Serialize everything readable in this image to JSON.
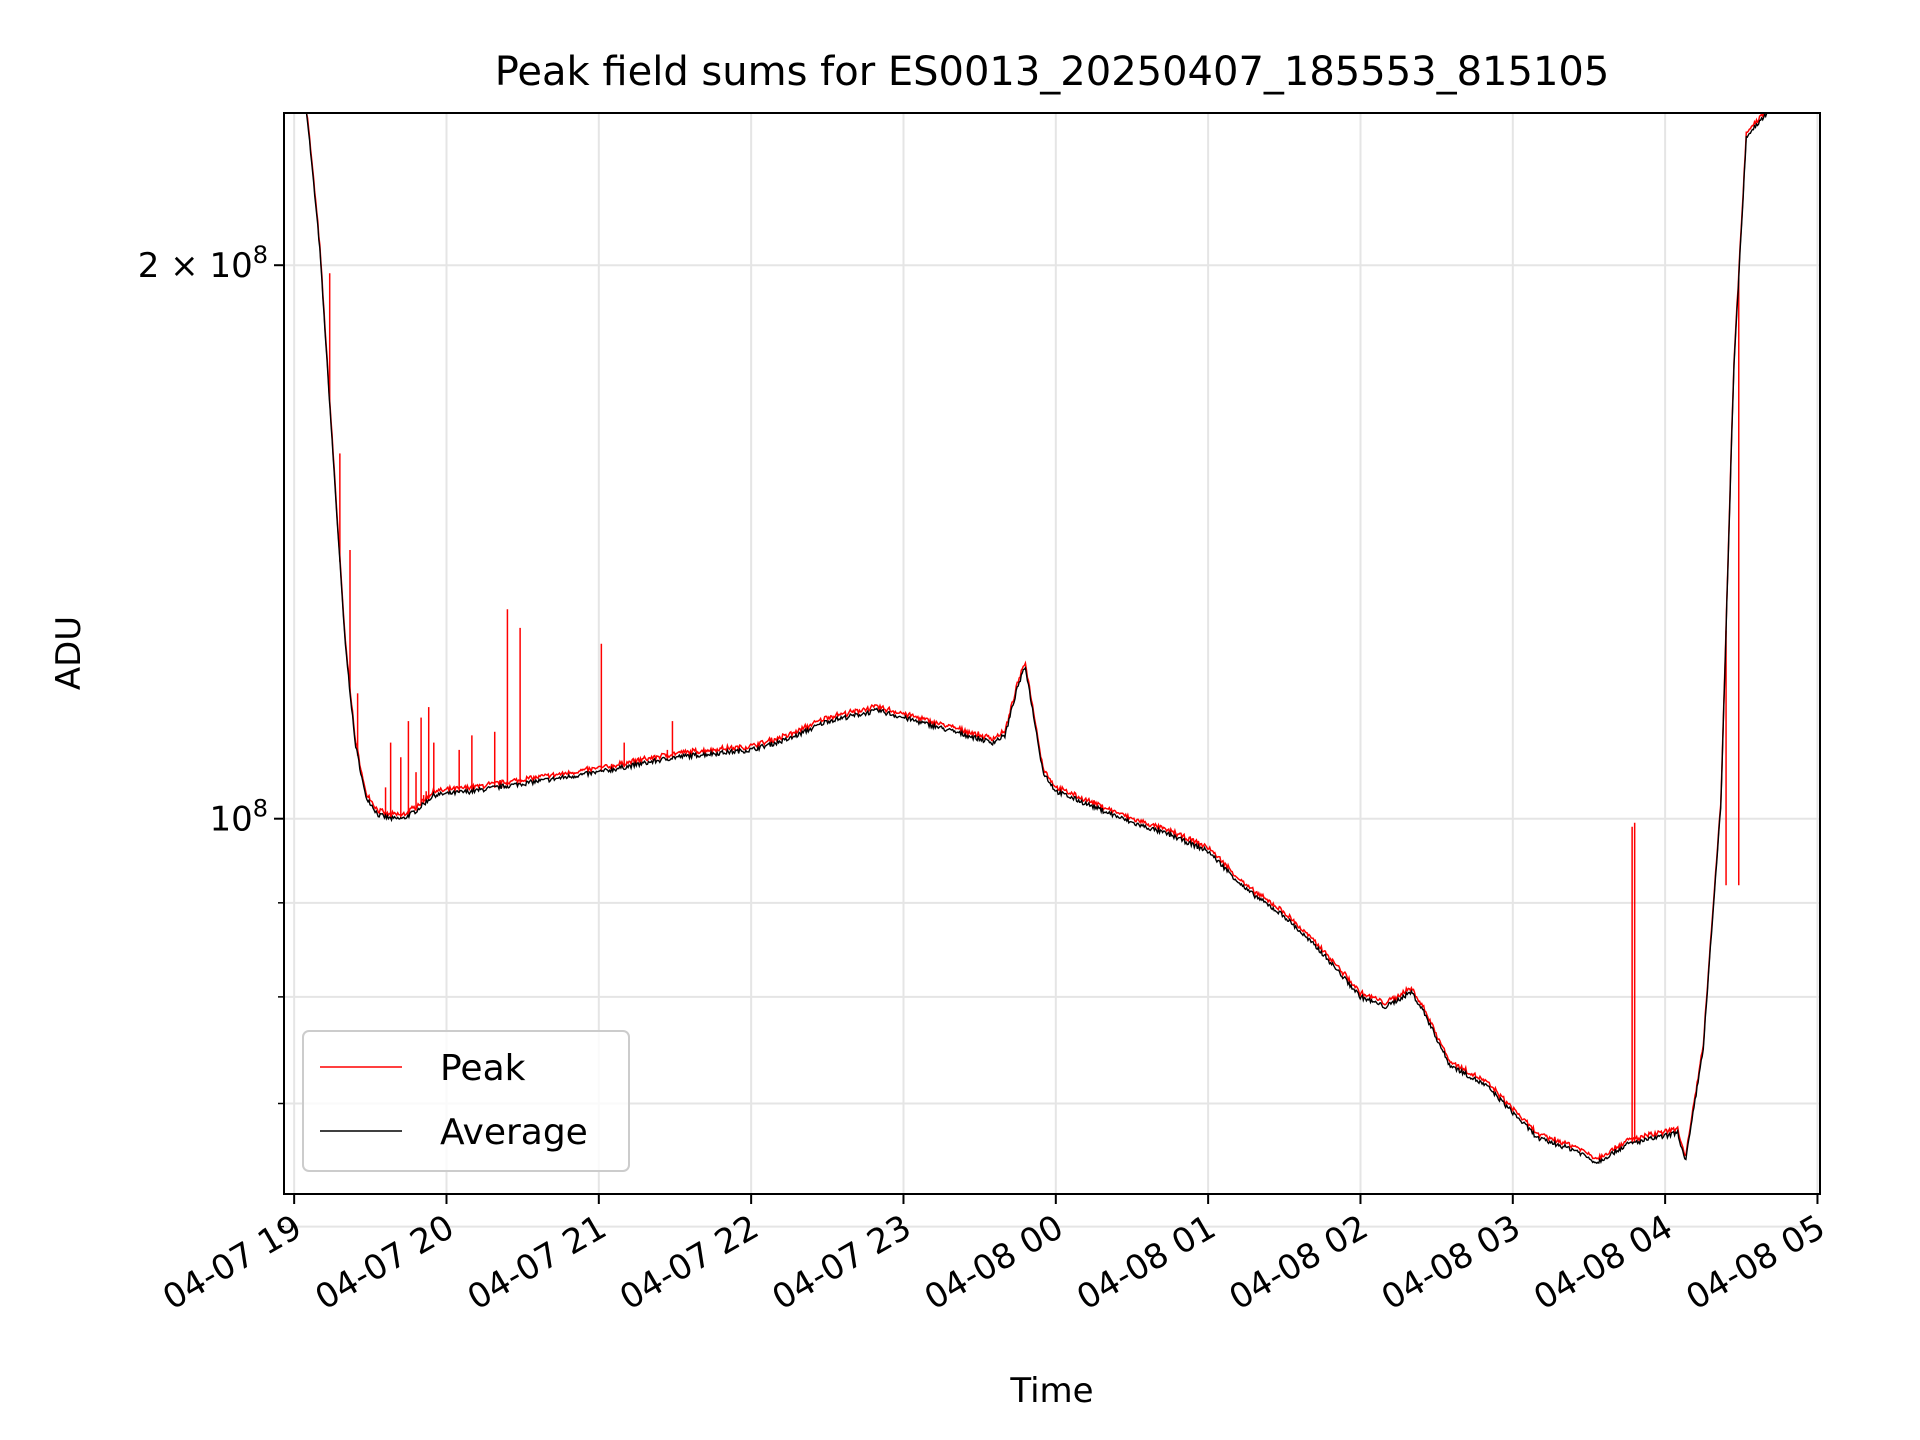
{
  "chart_data": {
    "type": "line",
    "title": "Peak field sums for ES0013_20250407_185553_815105",
    "xlabel": "Time",
    "ylabel": "ADU",
    "y_scale": "log",
    "ylim": [
      62500000,
      242000000
    ],
    "xlim": [
      "2025-04-07 18:56",
      "2025-04-08 05:01"
    ],
    "grid": true,
    "legend_position": "lower-left",
    "x_ticks": [
      {
        "t": "2025-04-07 19:00",
        "label": "04-07 19"
      },
      {
        "t": "2025-04-07 20:00",
        "label": "04-07 20"
      },
      {
        "t": "2025-04-07 21:00",
        "label": "04-07 21"
      },
      {
        "t": "2025-04-07 22:00",
        "label": "04-07 22"
      },
      {
        "t": "2025-04-07 23:00",
        "label": "04-07 23"
      },
      {
        "t": "2025-04-08 00:00",
        "label": "04-08 00"
      },
      {
        "t": "2025-04-08 01:00",
        "label": "04-08 01"
      },
      {
        "t": "2025-04-08 02:00",
        "label": "04-08 02"
      },
      {
        "t": "2025-04-08 03:00",
        "label": "04-08 03"
      },
      {
        "t": "2025-04-08 04:00",
        "label": "04-08 04"
      },
      {
        "t": "2025-04-08 05:00",
        "label": "04-08 05"
      }
    ],
    "y_ticks_major": [
      {
        "value": 100000000,
        "base": "10",
        "exp": "8",
        "coef": ""
      },
      {
        "value": 200000000,
        "base": "10",
        "exp": "8",
        "coef": "2"
      }
    ],
    "y_ticks_minor": [
      60000000,
      70000000,
      80000000,
      90000000
    ],
    "colors": {
      "peak": "#ff0000",
      "average": "#000000"
    },
    "series": [
      {
        "name": "Average",
        "color": "#000000",
        "x": [
          "2025-04-07 18:56",
          "2025-04-07 19:05",
          "2025-04-07 19:10",
          "2025-04-07 19:15",
          "2025-04-07 19:20",
          "2025-04-07 19:24",
          "2025-04-07 19:28",
          "2025-04-07 19:33",
          "2025-04-07 19:38",
          "2025-04-07 19:43",
          "2025-04-07 19:48",
          "2025-04-07 19:55",
          "2025-04-07 20:10",
          "2025-04-07 20:30",
          "2025-04-07 21:00",
          "2025-04-07 21:30",
          "2025-04-07 22:00",
          "2025-04-07 22:15",
          "2025-04-07 22:30",
          "2025-04-07 22:50",
          "2025-04-07 23:15",
          "2025-04-07 23:35",
          "2025-04-07 23:40",
          "2025-04-07 23:45",
          "2025-04-07 23:48",
          "2025-04-07 23:55",
          "2025-04-08 00:00",
          "2025-04-08 00:15",
          "2025-04-08 00:30",
          "2025-04-08 00:45",
          "2025-04-08 01:00",
          "2025-04-08 01:15",
          "2025-04-08 01:30",
          "2025-04-08 01:45",
          "2025-04-08 02:00",
          "2025-04-08 02:10",
          "2025-04-08 02:20",
          "2025-04-08 02:25",
          "2025-04-08 02:35",
          "2025-04-08 02:50",
          "2025-04-08 03:10",
          "2025-04-08 03:25",
          "2025-04-08 03:33",
          "2025-04-08 03:45",
          "2025-04-08 03:55",
          "2025-04-08 04:00",
          "2025-04-08 04:05",
          "2025-04-08 04:08",
          "2025-04-08 04:15",
          "2025-04-08 04:22",
          "2025-04-08 04:27",
          "2025-04-08 04:32",
          "2025-04-08 04:40",
          "2025-04-08 04:45",
          "2025-04-08 05:01"
        ],
        "values": [
          242000000,
          242000000,
          205000000,
          160000000,
          125000000,
          110000000,
          103000000,
          100500000,
          100000000,
          100000000,
          101000000,
          103000000,
          103500000,
          104500000,
          106000000,
          108000000,
          109000000,
          110500000,
          113000000,
          114500000,
          112000000,
          110000000,
          111000000,
          118000000,
          121000000,
          106000000,
          103500000,
          101500000,
          99500000,
          98000000,
          96000000,
          91500000,
          88500000,
          84500000,
          80000000,
          79000000,
          80500000,
          78500000,
          73500000,
          71500000,
          67000000,
          66000000,
          65000000,
          66500000,
          67000000,
          67200000,
          67500000,
          65000000,
          75000000,
          102000000,
          175000000,
          235000000,
          242000000,
          242000000,
          242000000
        ]
      },
      {
        "name": "Peak",
        "color": "#ff0000",
        "spikes": [
          {
            "t": "2025-04-07 19:14",
            "value": 198000000
          },
          {
            "t": "2025-04-07 19:18",
            "value": 158000000
          },
          {
            "t": "2025-04-07 19:22",
            "value": 140000000
          },
          {
            "t": "2025-04-07 19:25",
            "value": 117000000
          },
          {
            "t": "2025-04-07 19:36",
            "value": 104000000
          },
          {
            "t": "2025-04-07 19:38",
            "value": 110000000
          },
          {
            "t": "2025-04-07 19:42",
            "value": 108000000
          },
          {
            "t": "2025-04-07 19:45",
            "value": 113000000
          },
          {
            "t": "2025-04-07 19:48",
            "value": 106000000
          },
          {
            "t": "2025-04-07 19:50",
            "value": 113500000
          },
          {
            "t": "2025-04-07 19:51",
            "value": 103000000
          },
          {
            "t": "2025-04-07 19:52",
            "value": 103500000
          },
          {
            "t": "2025-04-07 19:53",
            "value": 115000000
          },
          {
            "t": "2025-04-07 19:55",
            "value": 110000000
          },
          {
            "t": "2025-04-07 20:05",
            "value": 109000000
          },
          {
            "t": "2025-04-07 20:10",
            "value": 111000000
          },
          {
            "t": "2025-04-07 20:19",
            "value": 111500000
          },
          {
            "t": "2025-04-07 20:22",
            "value": 104000000
          },
          {
            "t": "2025-04-07 20:24",
            "value": 130000000
          },
          {
            "t": "2025-04-07 20:29",
            "value": 127000000
          },
          {
            "t": "2025-04-07 21:01",
            "value": 124500000
          },
          {
            "t": "2025-04-07 21:10",
            "value": 110000000
          },
          {
            "t": "2025-04-07 21:27",
            "value": 109000000
          },
          {
            "t": "2025-04-07 21:29",
            "value": 113000000
          },
          {
            "t": "2025-04-08 03:47",
            "value": 99000000
          },
          {
            "t": "2025-04-08 03:48",
            "value": 99500000
          },
          {
            "t": "2025-04-08 04:24",
            "value": 92000000
          },
          {
            "t": "2025-04-08 04:29",
            "value": 92000000
          }
        ]
      }
    ]
  }
}
